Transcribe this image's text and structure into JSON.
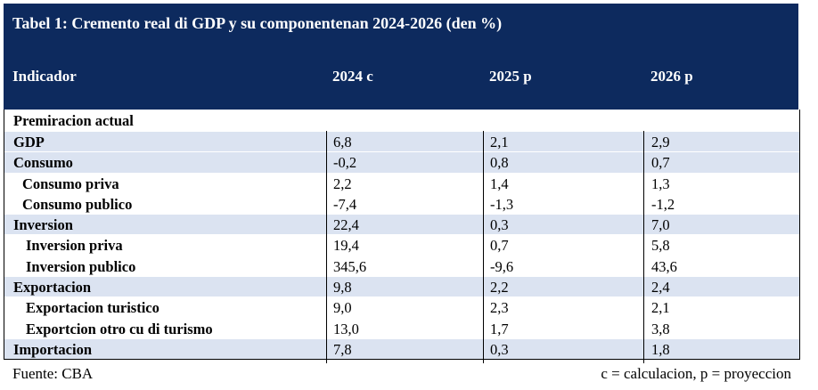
{
  "title": "Tabel 1: Cremento real di GDP y su componentenan  2024-2026 (den %)",
  "headers": {
    "indicator": "Indicador",
    "y2024": "2024 c",
    "y2025": "2025 p",
    "y2026": "2026 p"
  },
  "section": "Premiracion  actual",
  "rows": [
    {
      "label": "GDP",
      "v2024": "6,8",
      "v2025": "2,1",
      "v2026": "2,9"
    },
    {
      "label": "Consumo",
      "v2024": "-0,2",
      "v2025": "0,8",
      "v2026": "0,7"
    },
    {
      "label": "Consumo  priva",
      "v2024": "2,2",
      "v2025": "1,4",
      "v2026": "1,3"
    },
    {
      "label": "Consumo  publico",
      "v2024": "-7,4",
      "v2025": "-1,3",
      "v2026": "-1,2"
    },
    {
      "label": "Inversion",
      "v2024": "22,4",
      "v2025": "0,3",
      "v2026": "7,0"
    },
    {
      "label": "Inversion priva",
      "v2024": "19,4",
      "v2025": "0,7",
      "v2026": "5,8"
    },
    {
      "label": "Inversion publico",
      "v2024": "345,6",
      "v2025": "-9,6",
      "v2026": "43,6"
    },
    {
      "label": "Exportacion",
      "v2024": "9,8",
      "v2025": "2,2",
      "v2026": "2,4"
    },
    {
      "label": "Exportacion  turistico",
      "v2024": "9,0",
      "v2025": "2,3",
      "v2026": "2,1"
    },
    {
      "label": "Exportcion  otro  cu  di  turismo",
      "v2024": "13,0",
      "v2025": "1,7",
      "v2026": "3,8"
    },
    {
      "label": "Importacion",
      "v2024": "7,8",
      "v2025": "0,3",
      "v2026": "1,8"
    }
  ],
  "footer": {
    "source": "Fuente: CBA",
    "legend": "c = calculacion, p = proyeccion"
  },
  "colors": {
    "header_bg": "#0d2a5e",
    "shade": "#dbe3f1"
  }
}
